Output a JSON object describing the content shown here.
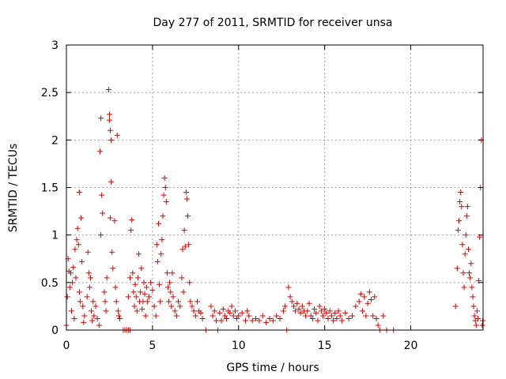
{
  "chart_data": {
    "type": "scatter",
    "title": "Day 277 of 2011, SRMTID for receiver unsa",
    "xlabel": "GPS time / hours",
    "ylabel": "SRMTID / TECUs",
    "xlim": [
      0,
      24.2
    ],
    "ylim": [
      0,
      3
    ],
    "xticks": [
      0,
      5,
      10,
      15,
      20
    ],
    "xtick_labels": [
      "0",
      "5",
      "10",
      "15",
      "20"
    ],
    "yticks": [
      0,
      0.5,
      1,
      1.5,
      2,
      2.5,
      3
    ],
    "ytick_labels": [
      "0",
      "0.5",
      "1",
      "1.5",
      "2",
      "2.5",
      "3"
    ],
    "grid": true,
    "marker": "+",
    "color": "#e00000",
    "series": [
      {
        "name": "SRMTID",
        "points": [
          [
            0.0,
            0.05
          ],
          [
            0.05,
            0.35
          ],
          [
            0.1,
            0.75
          ],
          [
            0.15,
            0.62
          ],
          [
            0.2,
            0.45
          ],
          [
            0.25,
            0.6
          ],
          [
            0.3,
            0.2
          ],
          [
            0.35,
            0.5
          ],
          [
            0.4,
            0.66
          ],
          [
            0.45,
            0.12
          ],
          [
            0.5,
            0.85
          ],
          [
            0.55,
            0.55
          ],
          [
            0.6,
            0.95
          ],
          [
            0.65,
            1.07
          ],
          [
            0.7,
            0.9
          ],
          [
            0.75,
            0.4
          ],
          [
            0.8,
            0.3
          ],
          [
            0.85,
            1.18
          ],
          [
            0.9,
            0.72
          ],
          [
            0.95,
            0.25
          ],
          [
            1.0,
            0.08
          ],
          [
            1.05,
            0.15
          ],
          [
            0.75,
            1.45
          ],
          [
            1.2,
            0.35
          ],
          [
            1.25,
            0.82
          ],
          [
            1.3,
            0.6
          ],
          [
            1.35,
            0.45
          ],
          [
            1.4,
            0.55
          ],
          [
            1.45,
            0.2
          ],
          [
            1.5,
            0.1
          ],
          [
            1.55,
            0.3
          ],
          [
            1.6,
            0.15
          ],
          [
            1.7,
            0.25
          ],
          [
            1.8,
            0.12
          ],
          [
            1.9,
            0.05
          ],
          [
            1.95,
            1.88
          ],
          [
            2.0,
            2.23
          ],
          [
            2.05,
            1.42
          ],
          [
            2.1,
            1.23
          ],
          [
            2.0,
            1.0
          ],
          [
            2.2,
            0.4
          ],
          [
            2.25,
            0.3
          ],
          [
            2.3,
            0.2
          ],
          [
            2.35,
            0.55
          ],
          [
            2.45,
            2.53
          ],
          [
            2.5,
            2.27
          ],
          [
            2.5,
            2.21
          ],
          [
            2.55,
            2.1
          ],
          [
            2.6,
            2.0
          ],
          [
            2.6,
            1.56
          ],
          [
            2.55,
            1.18
          ],
          [
            2.65,
            0.82
          ],
          [
            2.7,
            0.65
          ],
          [
            2.8,
            1.15
          ],
          [
            2.85,
            0.45
          ],
          [
            2.9,
            0.3
          ],
          [
            2.95,
            2.05
          ],
          [
            3.0,
            0.2
          ],
          [
            3.05,
            0.15
          ],
          [
            3.1,
            0.12
          ],
          [
            3.3,
            0.0
          ],
          [
            3.4,
            0.0
          ],
          [
            3.5,
            0.0
          ],
          [
            3.6,
            0.0
          ],
          [
            3.7,
            0.0
          ],
          [
            3.6,
            0.35
          ],
          [
            3.7,
            0.55
          ],
          [
            3.75,
            1.05
          ],
          [
            3.8,
            1.16
          ],
          [
            3.85,
            0.6
          ],
          [
            3.9,
            0.4
          ],
          [
            3.95,
            0.25
          ],
          [
            4.0,
            0.48
          ],
          [
            4.05,
            0.35
          ],
          [
            4.1,
            0.2
          ],
          [
            4.15,
            0.55
          ],
          [
            4.2,
            0.8
          ],
          [
            4.25,
            0.3
          ],
          [
            4.3,
            0.4
          ],
          [
            4.35,
            0.65
          ],
          [
            4.4,
            0.22
          ],
          [
            4.45,
            0.3
          ],
          [
            4.5,
            0.5
          ],
          [
            4.55,
            0.38
          ],
          [
            4.6,
            0.15
          ],
          [
            4.65,
            0.45
          ],
          [
            4.7,
            0.3
          ],
          [
            4.8,
            0.35
          ],
          [
            4.9,
            0.5
          ],
          [
            5.0,
            0.42
          ],
          [
            5.1,
            0.25
          ],
          [
            5.2,
            0.15
          ],
          [
            5.25,
            0.9
          ],
          [
            5.3,
            0.72
          ],
          [
            5.35,
            1.12
          ],
          [
            5.4,
            0.48
          ],
          [
            5.45,
            0.3
          ],
          [
            5.5,
            0.8
          ],
          [
            5.55,
            0.95
          ],
          [
            5.6,
            1.2
          ],
          [
            5.65,
            1.42
          ],
          [
            5.7,
            1.6
          ],
          [
            5.75,
            1.5
          ],
          [
            5.8,
            1.35
          ],
          [
            5.85,
            0.6
          ],
          [
            5.9,
            0.45
          ],
          [
            5.95,
            0.3
          ],
          [
            6.0,
            0.5
          ],
          [
            6.05,
            0.4
          ],
          [
            6.1,
            0.25
          ],
          [
            6.15,
            0.6
          ],
          [
            6.2,
            0.35
          ],
          [
            6.3,
            0.2
          ],
          [
            6.4,
            0.15
          ],
          [
            6.5,
            0.3
          ],
          [
            6.6,
            0.25
          ],
          [
            6.7,
            0.55
          ],
          [
            6.75,
            0.85
          ],
          [
            6.8,
            0.4
          ],
          [
            6.85,
            1.05
          ],
          [
            6.9,
            0.88
          ],
          [
            6.95,
            1.45
          ],
          [
            7.0,
            1.38
          ],
          [
            7.05,
            1.2
          ],
          [
            7.1,
            0.9
          ],
          [
            7.15,
            0.5
          ],
          [
            7.2,
            0.3
          ],
          [
            7.3,
            0.25
          ],
          [
            7.4,
            0.2
          ],
          [
            7.5,
            0.15
          ],
          [
            7.6,
            0.3
          ],
          [
            7.7,
            0.2
          ],
          [
            7.8,
            0.18
          ],
          [
            7.9,
            0.12
          ],
          [
            8.1,
            0.0
          ],
          [
            8.4,
            0.25
          ],
          [
            8.5,
            0.15
          ],
          [
            8.6,
            0.2
          ],
          [
            8.7,
            0.1
          ],
          [
            8.8,
            0.0
          ],
          [
            8.9,
            0.18
          ],
          [
            9.0,
            0.1
          ],
          [
            9.1,
            0.22
          ],
          [
            9.2,
            0.15
          ],
          [
            9.3,
            0.12
          ],
          [
            9.4,
            0.2
          ],
          [
            9.5,
            0.18
          ],
          [
            9.6,
            0.25
          ],
          [
            9.7,
            0.15
          ],
          [
            9.8,
            0.2
          ],
          [
            9.9,
            0.12
          ],
          [
            10.0,
            0.15
          ],
          [
            10.2,
            0.18
          ],
          [
            10.4,
            0.1
          ],
          [
            10.5,
            0.2
          ],
          [
            10.6,
            0.15
          ],
          [
            10.8,
            0.1
          ],
          [
            11.0,
            0.12
          ],
          [
            11.2,
            0.1
          ],
          [
            11.4,
            0.15
          ],
          [
            11.6,
            0.08
          ],
          [
            11.8,
            0.12
          ],
          [
            12.0,
            0.1
          ],
          [
            12.2,
            0.15
          ],
          [
            12.4,
            0.12
          ],
          [
            12.6,
            0.2
          ],
          [
            12.7,
            0.25
          ],
          [
            12.8,
            0.0
          ],
          [
            12.9,
            0.45
          ],
          [
            13.0,
            0.35
          ],
          [
            13.1,
            0.3
          ],
          [
            13.2,
            0.25
          ],
          [
            13.3,
            0.2
          ],
          [
            13.4,
            0.28
          ],
          [
            13.5,
            0.22
          ],
          [
            13.6,
            0.18
          ],
          [
            13.7,
            0.25
          ],
          [
            13.8,
            0.2
          ],
          [
            13.9,
            0.15
          ],
          [
            14.0,
            0.2
          ],
          [
            14.1,
            0.28
          ],
          [
            14.2,
            0.15
          ],
          [
            14.3,
            0.12
          ],
          [
            14.4,
            0.22
          ],
          [
            14.5,
            0.18
          ],
          [
            14.6,
            0.1
          ],
          [
            14.7,
            0.25
          ],
          [
            14.8,
            0.2
          ],
          [
            14.9,
            0.15
          ],
          [
            15.0,
            0.22
          ],
          [
            15.1,
            0.18
          ],
          [
            15.2,
            0.12
          ],
          [
            15.3,
            0.2
          ],
          [
            15.4,
            0.15
          ],
          [
            15.5,
            0.1
          ],
          [
            15.6,
            0.18
          ],
          [
            15.7,
            0.12
          ],
          [
            15.8,
            0.2
          ],
          [
            15.9,
            0.15
          ],
          [
            16.0,
            0.1
          ],
          [
            16.2,
            0.18
          ],
          [
            16.4,
            0.12
          ],
          [
            16.6,
            0.15
          ],
          [
            16.8,
            0.25
          ],
          [
            17.0,
            0.3
          ],
          [
            17.1,
            0.38
          ],
          [
            17.2,
            0.2
          ],
          [
            17.3,
            0.35
          ],
          [
            17.4,
            0.15
          ],
          [
            17.5,
            0.28
          ],
          [
            17.6,
            0.4
          ],
          [
            17.7,
            0.32
          ],
          [
            17.8,
            0.15
          ],
          [
            17.9,
            0.35
          ],
          [
            18.0,
            0.12
          ],
          [
            18.1,
            0.05
          ],
          [
            18.2,
            0.0
          ],
          [
            18.4,
            0.15
          ],
          [
            18.6,
            0.0
          ],
          [
            19.0,
            0.0
          ],
          [
            22.6,
            0.25
          ],
          [
            22.7,
            0.65
          ],
          [
            22.75,
            1.05
          ],
          [
            22.8,
            1.15
          ],
          [
            22.85,
            1.35
          ],
          [
            22.9,
            1.45
          ],
          [
            22.95,
            1.3
          ],
          [
            23.0,
            0.9
          ],
          [
            23.05,
            0.6
          ],
          [
            23.1,
            0.45
          ],
          [
            23.15,
            0.8
          ],
          [
            23.2,
            1.0
          ],
          [
            23.25,
            1.2
          ],
          [
            23.3,
            1.3
          ],
          [
            23.35,
            0.85
          ],
          [
            23.4,
            0.6
          ],
          [
            23.45,
            0.55
          ],
          [
            23.5,
            0.7
          ],
          [
            23.55,
            0.45
          ],
          [
            23.6,
            0.35
          ],
          [
            23.65,
            0.25
          ],
          [
            23.7,
            0.15
          ],
          [
            23.75,
            0.1
          ],
          [
            23.8,
            0.05
          ],
          [
            23.85,
            0.2
          ],
          [
            23.9,
            0.12
          ],
          [
            23.95,
            0.52
          ],
          [
            24.0,
            0.98
          ],
          [
            24.05,
            1.5
          ],
          [
            24.1,
            2.0
          ],
          [
            24.15,
            0.05
          ],
          [
            24.18,
            0.1
          ]
        ]
      }
    ]
  }
}
